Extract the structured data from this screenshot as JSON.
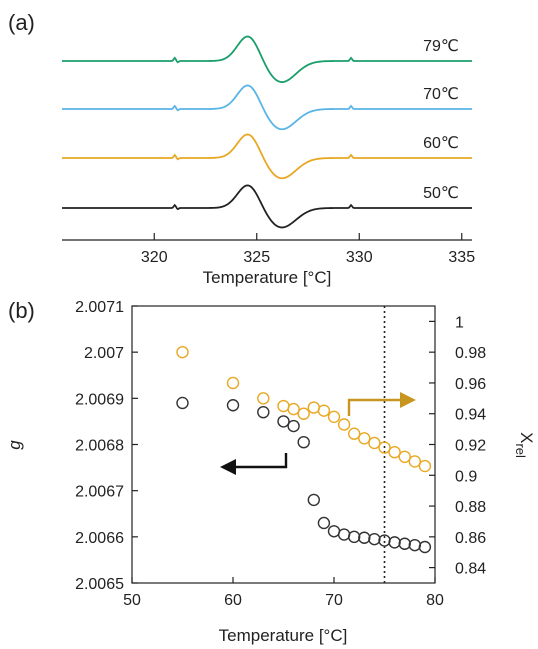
{
  "chart_data": [
    {
      "panel": "(a)",
      "type": "line",
      "xlabel": "Temperature [°C]",
      "ylabel": "",
      "xlim": [
        315.5,
        335.5
      ],
      "xticks": [
        "320",
        "325",
        "330",
        "335"
      ],
      "grid": false,
      "signal": {
        "peak_x": 324.6,
        "trough_x": 326.2,
        "small_glitches_x": [
          321.0,
          329.6
        ]
      },
      "series": [
        {
          "name": "79℃",
          "color": "#1a9e6a"
        },
        {
          "name": "70℃",
          "color": "#5ab4e6"
        },
        {
          "name": "60℃",
          "color": "#e8a823"
        },
        {
          "name": "50℃",
          "color": "#222222"
        }
      ]
    },
    {
      "panel": "(b)",
      "type": "scatter",
      "xlabel": "Temperature [°C]",
      "ylabel": "g",
      "ylabel_right_main": "X",
      "ylabel_right_sub": "rel",
      "xlim": [
        50,
        80
      ],
      "ylim": [
        2.0065,
        2.0071
      ],
      "ylim_right": [
        0.83,
        1.01
      ],
      "xticks": [
        "50",
        "60",
        "70",
        "80"
      ],
      "yticks": [
        "2.0065",
        "2.0066",
        "2.0067",
        "2.0068",
        "2.0069",
        "2.007",
        "2.0071"
      ],
      "yticks_right": [
        "0.84",
        "0.86",
        "0.88",
        "0.9",
        "0.92",
        "0.94",
        "0.96",
        "0.98",
        "1"
      ],
      "vline_x": 75,
      "grid": false,
      "series": [
        {
          "name": "g",
          "axis": "left",
          "color": "#333333",
          "x": [
            55,
            60,
            63,
            65,
            66,
            67,
            68,
            69,
            70,
            71,
            72,
            73,
            74,
            75,
            76,
            77,
            78,
            79
          ],
          "y": [
            2.00689,
            2.006885,
            2.00687,
            2.00685,
            2.00684,
            2.006805,
            2.00668,
            2.00663,
            2.006612,
            2.006605,
            2.0066,
            2.006598,
            2.006595,
            2.006592,
            2.006588,
            2.006585,
            2.006582,
            2.006578
          ]
        },
        {
          "name": "Xrel",
          "axis": "right",
          "color": "#e8a823",
          "x": [
            55,
            60,
            63,
            65,
            66,
            67,
            68,
            69,
            70,
            71,
            72,
            73,
            74,
            75,
            76,
            77,
            78,
            79
          ],
          "y": [
            0.98,
            0.96,
            0.95,
            0.945,
            0.943,
            0.94,
            0.944,
            0.942,
            0.938,
            0.933,
            0.927,
            0.924,
            0.921,
            0.918,
            0.915,
            0.912,
            0.909,
            0.906
          ]
        }
      ]
    }
  ]
}
